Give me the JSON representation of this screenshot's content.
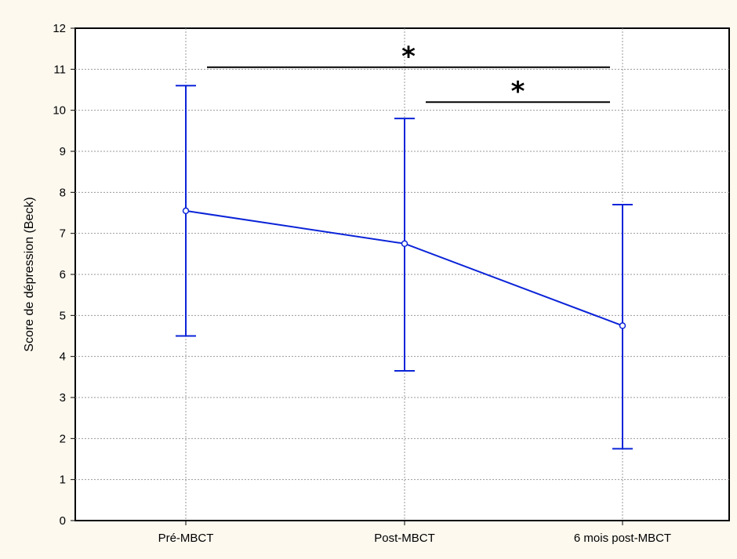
{
  "colors": {
    "background": "#fdf9ef",
    "plot_background": "#ffffff",
    "series": "#0b24d8",
    "grid": "#9a9a9a",
    "axis": "#000000"
  },
  "chart_data": {
    "type": "line",
    "title": "",
    "xlabel": "",
    "ylabel": "Score de dépression (Beck)",
    "categories": [
      "Pré-MBCT",
      "Post-MBCT",
      "6 mois post-MBCT"
    ],
    "ylim": [
      0,
      12
    ],
    "yticks": [
      "0",
      "1",
      "2",
      "3",
      "4",
      "5",
      "6",
      "7",
      "8",
      "9",
      "10",
      "11",
      "12"
    ],
    "grid": true,
    "series": [
      {
        "values": [
          7.55,
          6.75,
          4.75
        ],
        "error_low": [
          4.5,
          3.65,
          1.75
        ],
        "error_high": [
          10.6,
          9.8,
          7.7
        ]
      }
    ],
    "annotations": [
      {
        "text": "*",
        "from_category": 0,
        "to_category": 2,
        "y": 11.05
      },
      {
        "text": "*",
        "from_category": 1,
        "to_category": 2,
        "y": 10.2
      }
    ]
  }
}
